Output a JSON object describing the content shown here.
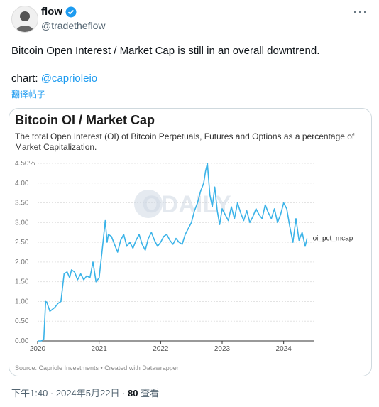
{
  "tweet": {
    "display_name": "flow",
    "handle": "@tradetheflow_",
    "more_icon": "more-icon",
    "text": "Bitcoin Open Interest / Market Cap is still in an overall downtrend.",
    "chart_prefix": "chart: ",
    "mention": "@caprioleio",
    "translate_label": "翻译帖子",
    "timestamp": "下午1:40 · 2024年5月22日 · ",
    "views_count": "80",
    "views_label": " 查看"
  },
  "card": {
    "title": "Bitcoin OI / Market Cap",
    "subtitle": "The total Open Interest (OI) of Bitcoin Perpetuals, Futures and Options as a percentage of Market Capitalization.",
    "source": "Source: Capriole Investments • Created with Datawrapper",
    "watermark": "ODAILY"
  },
  "colors": {
    "accent": "#1d9bf0",
    "line": "#3bb3e8"
  },
  "chart_data": {
    "type": "line",
    "title": "Bitcoin OI / Market Cap",
    "subtitle": "The total Open Interest (OI) of Bitcoin Perpetuals, Futures and Options as a percentage of Market Capitalization.",
    "xlabel": "",
    "ylabel": "",
    "ylim": [
      0,
      4.5
    ],
    "xlim": [
      2020.0,
      2024.5
    ],
    "y_ticks": [
      "0.00",
      "0.50",
      "1.00",
      "1.50",
      "2.00",
      "2.50",
      "3.00",
      "3.50",
      "4.00",
      "4.50%"
    ],
    "x_ticks": [
      "2020",
      "2021",
      "2022",
      "2023",
      "2024"
    ],
    "grid": true,
    "series": [
      {
        "name": "oi_pct_mcap",
        "x": [
          2020.0,
          2020.06,
          2020.1,
          2020.13,
          2020.15,
          2020.2,
          2020.28,
          2020.33,
          2020.38,
          2020.43,
          2020.48,
          2020.52,
          2020.55,
          2020.6,
          2020.65,
          2020.7,
          2020.75,
          2020.8,
          2020.85,
          2020.9,
          2020.95,
          2021.0,
          2021.05,
          2021.1,
          2021.13,
          2021.15,
          2021.2,
          2021.25,
          2021.3,
          2021.35,
          2021.4,
          2021.45,
          2021.5,
          2021.55,
          2021.6,
          2021.65,
          2021.7,
          2021.75,
          2021.8,
          2021.85,
          2021.9,
          2021.95,
          2022.0,
          2022.05,
          2022.1,
          2022.15,
          2022.2,
          2022.25,
          2022.3,
          2022.35,
          2022.4,
          2022.45,
          2022.5,
          2022.55,
          2022.6,
          2022.65,
          2022.7,
          2022.73,
          2022.76,
          2022.8,
          2022.84,
          2022.88,
          2022.92,
          2022.96,
          2023.0,
          2023.05,
          2023.1,
          2023.15,
          2023.2,
          2023.25,
          2023.3,
          2023.35,
          2023.4,
          2023.45,
          2023.5,
          2023.55,
          2023.6,
          2023.65,
          2023.7,
          2023.75,
          2023.8,
          2023.85,
          2023.9,
          2023.95,
          2024.0,
          2024.05,
          2024.1,
          2024.15,
          2024.2,
          2024.25,
          2024.3,
          2024.35,
          2024.38
        ],
        "values": [
          0.0,
          0.0,
          0.05,
          1.0,
          0.98,
          0.75,
          0.85,
          0.95,
          1.0,
          1.7,
          1.75,
          1.6,
          1.8,
          1.75,
          1.55,
          1.7,
          1.55,
          1.65,
          1.6,
          2.0,
          1.5,
          1.6,
          2.3,
          3.05,
          2.5,
          2.7,
          2.65,
          2.45,
          2.25,
          2.55,
          2.7,
          2.4,
          2.5,
          2.35,
          2.55,
          2.7,
          2.45,
          2.3,
          2.6,
          2.75,
          2.55,
          2.4,
          2.5,
          2.65,
          2.7,
          2.55,
          2.45,
          2.6,
          2.5,
          2.45,
          2.7,
          2.85,
          3.0,
          3.3,
          3.5,
          3.8,
          4.0,
          4.3,
          4.5,
          3.7,
          3.4,
          3.9,
          3.3,
          2.95,
          3.35,
          3.2,
          3.05,
          3.4,
          3.1,
          3.5,
          3.25,
          3.05,
          3.3,
          3.0,
          3.15,
          3.35,
          3.2,
          3.1,
          3.45,
          3.25,
          3.1,
          3.35,
          3.0,
          3.2,
          3.5,
          3.35,
          2.9,
          2.5,
          3.1,
          2.55,
          2.75,
          2.4,
          2.6
        ]
      }
    ]
  }
}
